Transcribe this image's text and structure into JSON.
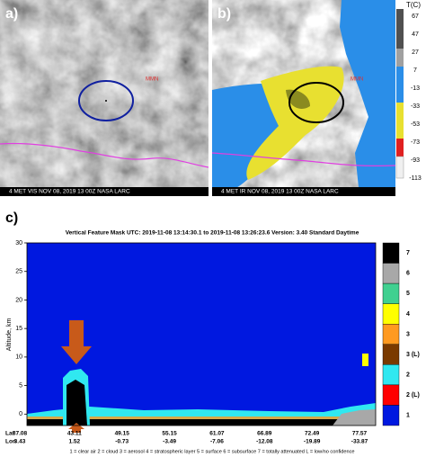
{
  "panels": {
    "a": {
      "label": "a)",
      "caption": "4 MET VIS NOV 08, 2019 13 00Z    NASA LARC",
      "marker": "MMN"
    },
    "b": {
      "label": "b)",
      "caption": "4 MET IR NOV 08, 2019 13 00Z    NASA LARC",
      "marker": "MMN",
      "colorbar_title": "T(C)",
      "colorbar_ticks": [
        67,
        47,
        27,
        7,
        -13,
        -33,
        -53,
        -73,
        -93,
        -113
      ]
    },
    "c": {
      "label": "c)",
      "title": "Vertical Feature Mask   UTC: 2019-11-08   13:14:30.1  to  2019-11-08   13:26:23.6    Version: 3.40  Standard Daytime",
      "ylabel": "Altitude, km",
      "ylim": [
        -2,
        30
      ],
      "yticks": [
        0,
        5,
        10,
        15,
        20,
        25,
        30
      ],
      "lat_label": "Lat",
      "lon_label": "Lon",
      "lat": [
        "37.08",
        "43.11",
        "49.15",
        "55.15",
        "61.07",
        "66.89",
        "72.49",
        "77.57"
      ],
      "lon": [
        "3.43",
        "1.52",
        "-0.73",
        "-3.49",
        "-7.06",
        "-12.08",
        "-19.89",
        "-33.87"
      ],
      "colorbar_labels": [
        "7",
        "6",
        "5",
        "4",
        "3",
        "3 (L)",
        "2",
        "2 (L)",
        "1"
      ],
      "colorbar_colors": [
        "#000000",
        "#a8a8a8",
        "#40d090",
        "#ffff00",
        "#ff9a20",
        "#7a3a00",
        "#30e8f0",
        "#ff0000",
        "#0018e0"
      ],
      "legend": "1 = clear air    2 = cloud    3 = aerosol    4 = stratospheric layer    5 = surface    6 = subsurface    7 = totally attenuated    L = low/no confidence"
    }
  }
}
